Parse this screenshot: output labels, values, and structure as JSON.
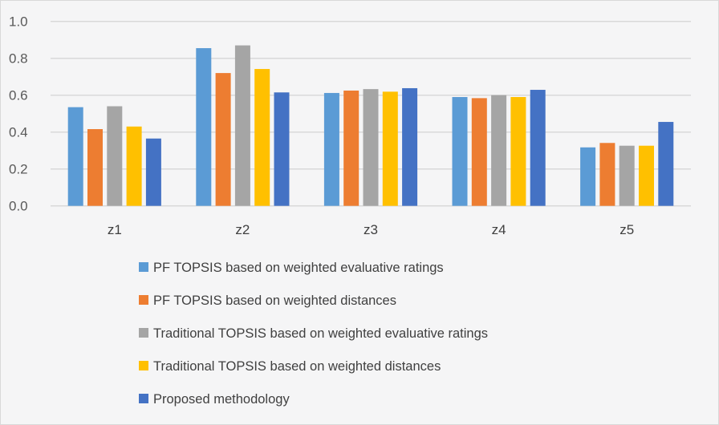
{
  "chart_data": {
    "type": "bar",
    "title": "",
    "xlabel": "",
    "ylabel": "",
    "ylim": [
      0,
      1.0
    ],
    "yticks": [
      "0.0",
      "0.2",
      "0.4",
      "0.6",
      "0.8",
      "1.0"
    ],
    "grid": true,
    "legend_position": "bottom",
    "categories": [
      "z1",
      "z2",
      "z3",
      "z4",
      "z5"
    ],
    "series": [
      {
        "name": "PF TOPSIS based on weighted evaluative ratings",
        "color": "#5b9bd5",
        "values": [
          0.535,
          0.855,
          0.612,
          0.59,
          0.317
        ]
      },
      {
        "name": "PF TOPSIS based on weighted distances",
        "color": "#ed7d31",
        "values": [
          0.416,
          0.72,
          0.625,
          0.584,
          0.341
        ]
      },
      {
        "name": "Traditional TOPSIS based on weighted evaluative ratings",
        "color": "#a5a5a5",
        "values": [
          0.54,
          0.87,
          0.633,
          0.6,
          0.326
        ]
      },
      {
        "name": "Traditional TOPSIS based on weighted distances",
        "color": "#ffc000",
        "values": [
          0.43,
          0.742,
          0.619,
          0.59,
          0.326
        ]
      },
      {
        "name": "Proposed methodology",
        "color": "#4472c4",
        "values": [
          0.365,
          0.615,
          0.638,
          0.629,
          0.455
        ]
      }
    ]
  }
}
